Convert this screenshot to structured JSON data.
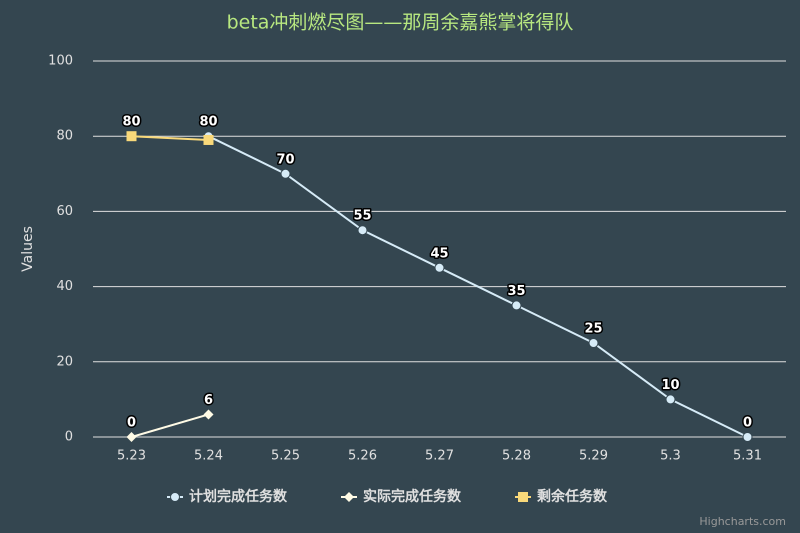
{
  "chart_data": {
    "type": "line",
    "title": "beta冲刺燃尽图——那周余嘉熊掌将得队",
    "y_axis_label": "Values",
    "credits": "Highcharts.com",
    "categories": [
      "5.23",
      "5.24",
      "5.25",
      "5.26",
      "5.27",
      "5.28",
      "5.29",
      "5.3",
      "5.31"
    ],
    "series": [
      {
        "name": "计划完成任务数",
        "color": "#d6ebf7",
        "marker": "circle",
        "values": [
          null,
          80,
          70,
          55,
          45,
          35,
          25,
          10,
          0
        ]
      },
      {
        "name": "实际完成任务数",
        "color": "#fffbe6",
        "marker": "diamond",
        "values": [
          0,
          6,
          null,
          null,
          null,
          null,
          null,
          null,
          null
        ]
      },
      {
        "name": "剩余任务数",
        "color": "#f9d97a",
        "marker": "square",
        "values": [
          80,
          79,
          null,
          null,
          null,
          null,
          null,
          null,
          null
        ]
      }
    ],
    "ylim": [
      0,
      100
    ],
    "yticks": [
      0,
      20,
      40,
      60,
      80,
      100
    ],
    "grid": true
  }
}
